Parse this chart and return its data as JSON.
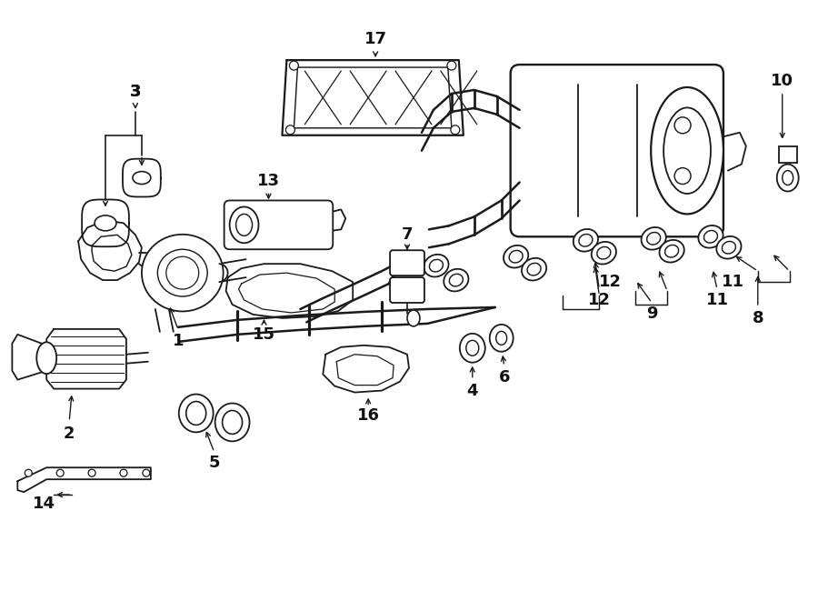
{
  "background_color": "#ffffff",
  "line_color": "#1a1a1a",
  "text_color": "#111111",
  "fig_width": 9.0,
  "fig_height": 6.61,
  "dpi": 100,
  "lw": 1.3,
  "components": {
    "label_fontsize": 12,
    "arrow_mutation_scale": 9
  }
}
